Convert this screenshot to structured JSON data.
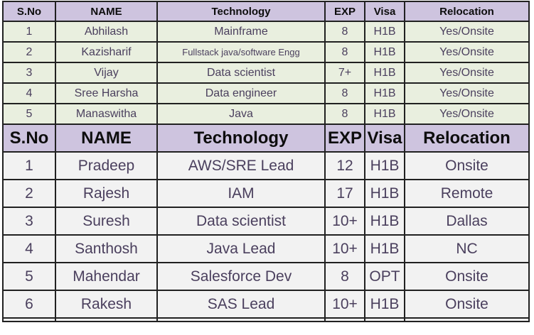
{
  "columns": [
    "S.No",
    "NAME",
    "Technology",
    "EXP",
    "Visa",
    "Relocation"
  ],
  "sections": [
    {
      "name": "candidates-top",
      "rows": [
        [
          "1",
          "Abhilash",
          "Mainframe",
          "8",
          "H1B",
          "Yes/Onsite"
        ],
        [
          "2",
          "Kazisharif",
          "Fullstack java/software Engg",
          "8",
          "H1B",
          "Yes/Onsite"
        ],
        [
          "3",
          "Vijay",
          "Data scientist",
          "7+",
          "H1B",
          "Yes/Onsite"
        ],
        [
          "4",
          "Sree Harsha",
          "Data engineer",
          "8",
          "H1B",
          "Yes/Onsite"
        ],
        [
          "5",
          "Manaswitha",
          "Java",
          "8",
          "H1B",
          "Yes/Onsite"
        ]
      ]
    },
    {
      "name": "candidates-bottom",
      "rows": [
        [
          "1",
          "Pradeep",
          "AWS/SRE Lead",
          "12",
          "H1B",
          "Onsite"
        ],
        [
          "2",
          "Rajesh",
          "IAM",
          "17",
          "H1B",
          "Remote"
        ],
        [
          "3",
          "Suresh",
          "Data scientist",
          "10+",
          "H1B",
          "Dallas"
        ],
        [
          "4",
          "Santhosh",
          "Java Lead",
          "10+",
          "H1B",
          "NC"
        ],
        [
          "5",
          "Mahendar",
          "Salesforce Dev",
          "8",
          "OPT",
          "Onsite"
        ],
        [
          "6",
          "Rakesh",
          "SAS Lead",
          "10+",
          "H1B",
          "Onsite"
        ]
      ]
    }
  ],
  "colors": {
    "header_bg": "#cec4df",
    "row_green_bg": "#e9efdf",
    "row_gray_bg": "#f2f2f2",
    "grid_border": "#212121",
    "data_text": "#4a3f5d",
    "header_text": "#0d0d0d"
  }
}
